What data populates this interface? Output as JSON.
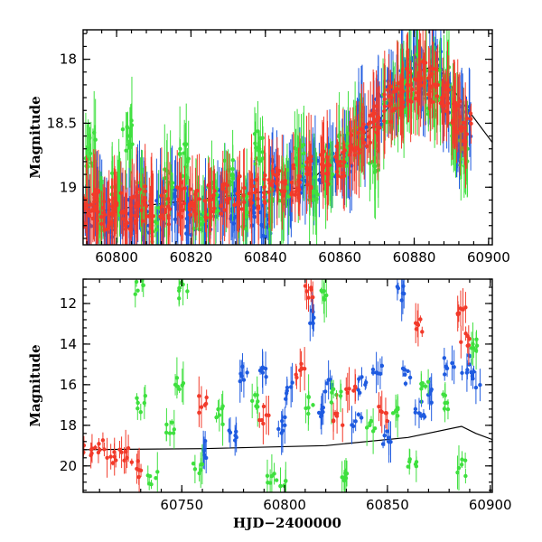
{
  "chart_data": [
    {
      "type": "scatter",
      "ylabel": "Magnitude",
      "xlabel": "",
      "xlim": [
        60791,
        60901
      ],
      "ylim": [
        19.45,
        17.77
      ],
      "y_inverted": true,
      "xticks": [
        60800,
        60820,
        60840,
        60860,
        60880,
        60900
      ],
      "xtick_labels": [
        "60800",
        "60820",
        "60840",
        "60860",
        "60880",
        "60900"
      ],
      "yticks": [
        18,
        18.5,
        19
      ],
      "ytick_labels": [
        "18",
        "18.5",
        "19"
      ],
      "colors": {
        "blue": "#1f5be0",
        "green": "#3ee03e",
        "red": "#f23a2a",
        "model_line": "#000000"
      },
      "series": [
        {
          "color": "blue",
          "x": [
            60792,
            60795,
            60798,
            60801,
            60804,
            60806,
            60808,
            60812,
            60816,
            60820,
            60824,
            60828,
            60832,
            60836,
            60840,
            60842,
            60846,
            60850,
            60854,
            60858,
            60862,
            60866,
            60870,
            60874,
            60877,
            60880,
            60883,
            60886,
            60889,
            60892,
            60894
          ],
          "y": [
            19.2,
            19.1,
            19.25,
            19.15,
            19.2,
            19.1,
            19.3,
            19.2,
            19.15,
            19.25,
            19.2,
            19.1,
            19.15,
            19.2,
            19.25,
            18.9,
            19.0,
            18.95,
            18.9,
            18.8,
            18.75,
            18.5,
            18.4,
            18.3,
            18.2,
            18.1,
            18.2,
            18.0,
            18.3,
            18.6,
            18.5
          ]
        },
        {
          "color": "green",
          "x": [
            60793,
            60796,
            60800,
            60803,
            60807,
            60810,
            60814,
            60818,
            60822,
            60826,
            60830,
            60834,
            60838,
            60841,
            60845,
            60849,
            60853,
            60857,
            60861,
            60865,
            60869,
            60873,
            60876,
            60879,
            60882,
            60885,
            60888,
            60891,
            60893
          ],
          "y": [
            18.7,
            19.2,
            19.0,
            18.6,
            19.1,
            19.3,
            19.0,
            18.8,
            19.2,
            19.1,
            18.9,
            19.2,
            18.7,
            19.1,
            19.0,
            18.8,
            19.0,
            18.9,
            18.7,
            18.6,
            18.8,
            18.4,
            18.3,
            18.2,
            18.1,
            18.3,
            18.2,
            18.5,
            18.7
          ]
        },
        {
          "color": "red",
          "x": [
            60792,
            60794,
            60797,
            60800,
            60803,
            60806,
            60809,
            60813,
            60817,
            60821,
            60825,
            60829,
            60833,
            60837,
            60841,
            60844,
            60848,
            60852,
            60856,
            60860,
            60864,
            60867,
            60870,
            60873,
            60876,
            60879,
            60882,
            60885,
            60888,
            60891,
            60894
          ],
          "y": [
            19.2,
            19.15,
            19.2,
            19.15,
            19.2,
            19.15,
            19.1,
            19.15,
            19.1,
            19.15,
            19.1,
            19.1,
            19.05,
            19.05,
            19.0,
            18.95,
            18.95,
            18.9,
            18.85,
            18.8,
            18.7,
            18.55,
            18.45,
            18.35,
            18.25,
            18.2,
            18.15,
            18.2,
            18.3,
            18.45,
            18.55
          ]
        }
      ],
      "model_line": {
        "x": [
          60791,
          60850,
          60870,
          60880,
          60886,
          60892,
          60901
        ],
        "y": [
          19.2,
          19.0,
          18.5,
          18.1,
          18.05,
          18.3,
          18.65
        ]
      }
    },
    {
      "type": "scatter",
      "ylabel": "Magnitude",
      "xlabel": "HJD−2400000",
      "xlim": [
        60702,
        60901
      ],
      "ylim": [
        21.3,
        10.8
      ],
      "y_inverted": true,
      "xticks": [
        60750,
        60800,
        60850,
        60900
      ],
      "xtick_labels": [
        "60750",
        "60800",
        "60850",
        "60900"
      ],
      "yticks": [
        12,
        14,
        16,
        18,
        20
      ],
      "ytick_labels": [
        "12",
        "14",
        "16",
        "18",
        "20"
      ],
      "colors": {
        "blue": "#1f5be0",
        "green": "#3ee03e",
        "red": "#f23a2a",
        "model_line": "#000000"
      },
      "series": [
        {
          "color": "blue",
          "x": [
            60780,
            60790,
            60803,
            60813,
            60822,
            60838,
            60845,
            60857,
            60860,
            60869,
            60880,
            60888,
            60893,
            60760,
            60775,
            60798,
            60818,
            60835,
            60850,
            60866
          ],
          "y": [
            15.4,
            15.3,
            16.3,
            12.7,
            16.0,
            16.0,
            15.4,
            11.5,
            15.5,
            16.5,
            15.1,
            15.0,
            15.7,
            19.2,
            18.5,
            18.0,
            17.5,
            17.8,
            18.5,
            17.2
          ]
        },
        {
          "color": "green",
          "x": [
            60729,
            60751,
            60820,
            60730,
            60744,
            60749,
            60768,
            60785,
            60794,
            60812,
            60825,
            60842,
            60855,
            60868,
            60878,
            60892,
            60736,
            60758,
            60800,
            60830,
            60862,
            60886
          ],
          "y": [
            11.1,
            11.4,
            11.6,
            16.9,
            18.2,
            16.0,
            17.5,
            16.8,
            20.5,
            17.0,
            16.5,
            18.0,
            17.4,
            16.2,
            16.9,
            14.0,
            20.5,
            20.2,
            21.0,
            20.6,
            19.8,
            20.1
          ]
        },
        {
          "color": "red",
          "x": [
            60704,
            60710,
            60716,
            60722,
            60728,
            60812,
            60808,
            60832,
            60866,
            60886,
            60888,
            60760,
            60790,
            60826,
            60848
          ],
          "y": [
            19.2,
            19.1,
            19.6,
            19.3,
            20.2,
            11.4,
            15.2,
            16.2,
            13.0,
            12.3,
            13.9,
            17.0,
            17.5,
            17.8,
            17.4
          ]
        }
      ],
      "model_line": {
        "x": [
          60702,
          60760,
          60820,
          60860,
          60886,
          60893,
          60901
        ],
        "y": [
          19.2,
          19.15,
          19.0,
          18.6,
          18.05,
          18.4,
          18.7
        ]
      }
    }
  ]
}
